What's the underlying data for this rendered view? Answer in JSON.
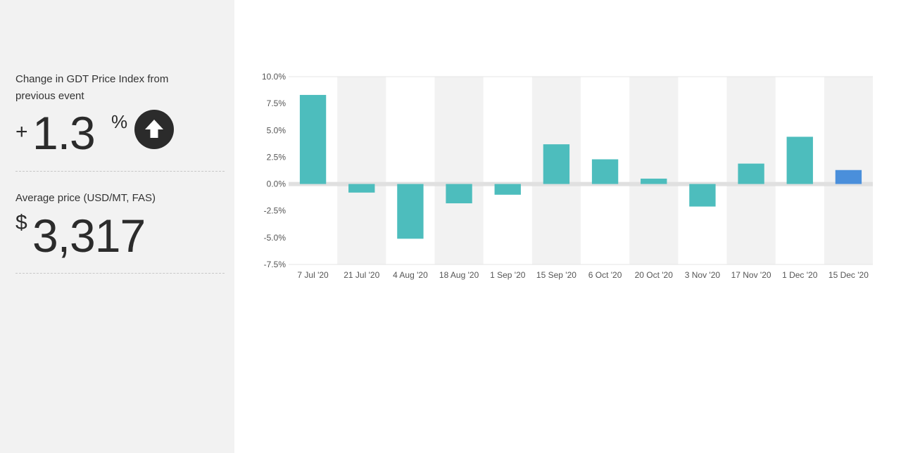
{
  "sidebar": {
    "change_label": "Change in GDT Price Index from previous event",
    "change_sign": "+",
    "change_value": "1.3",
    "change_unit": "%",
    "change_direction_icon": "arrow-up-icon",
    "price_label": "Average price (USD/MT, FAS)",
    "price_currency": "$",
    "price_value": "3,317"
  },
  "colors": {
    "bar": "#4dbdbd",
    "bar_latest": "#4a8fdb",
    "band": "#f2f2f2",
    "zero_line": "#e0e0e0"
  },
  "chart_data": {
    "type": "bar",
    "categories": [
      "7 Jul '20",
      "21 Jul '20",
      "4 Aug '20",
      "18 Aug '20",
      "1 Sep '20",
      "15 Sep '20",
      "6 Oct '20",
      "20 Oct '20",
      "3 Nov '20",
      "17 Nov '20",
      "1 Dec '20",
      "15 Dec '20"
    ],
    "values": [
      8.3,
      -0.8,
      -5.1,
      -1.8,
      -1.0,
      3.7,
      2.3,
      0.5,
      -2.1,
      1.9,
      4.4,
      1.3
    ],
    "yticks": [
      "10.0%",
      "7.5%",
      "5.0%",
      "2.5%",
      "0.0%",
      "-2.5%",
      "-5.0%",
      "-7.5%"
    ],
    "ylim": [
      -7.5,
      10.0
    ],
    "highlight_last": true,
    "grid": "alternating vertical bands",
    "title": "",
    "xlabel": "",
    "ylabel": ""
  }
}
